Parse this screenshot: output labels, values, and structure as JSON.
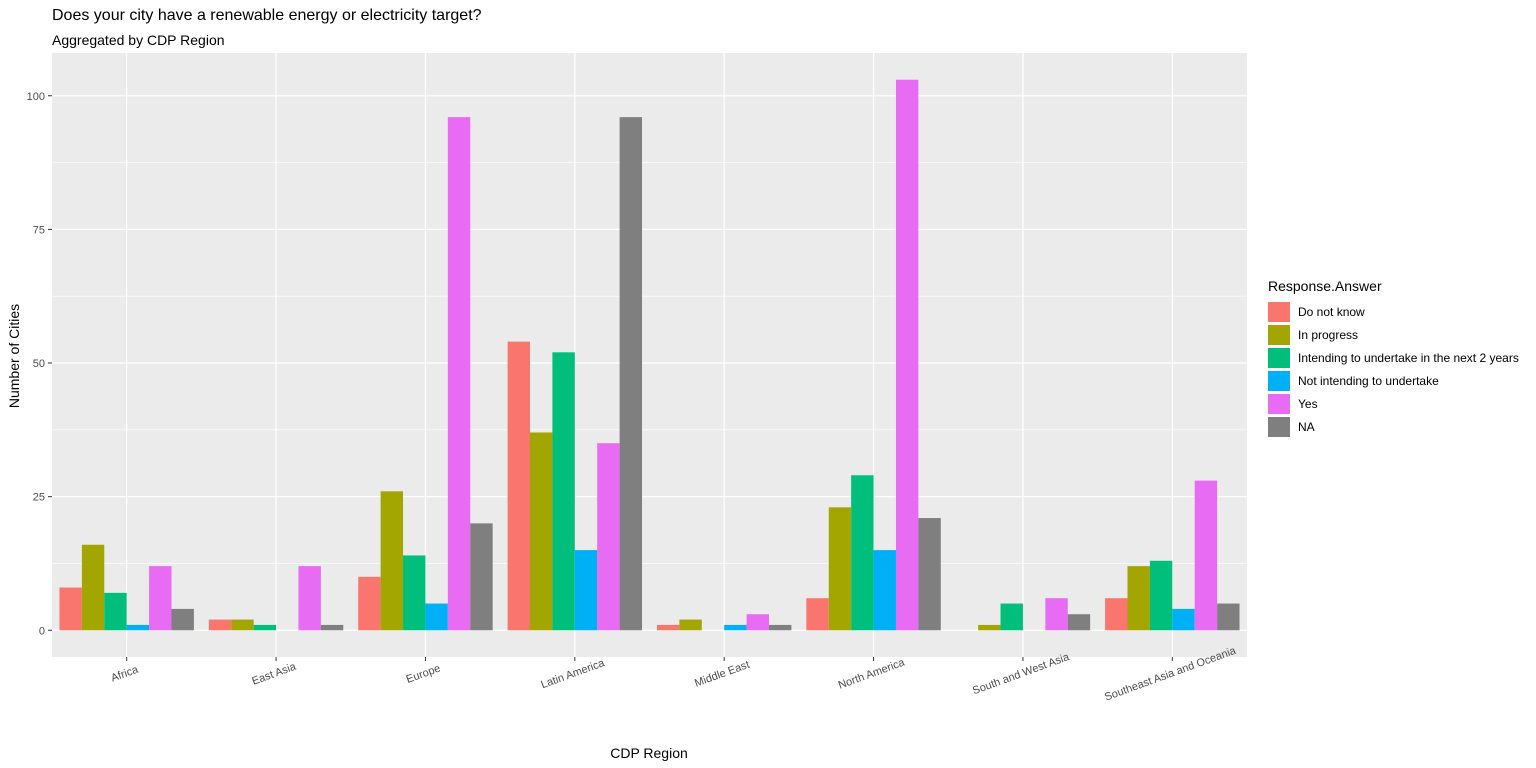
{
  "chart_data": {
    "type": "bar",
    "title": "Does your city have a renewable energy or electricity target?",
    "subtitle": "Aggregated by CDP Region",
    "xlabel": "CDP Region",
    "ylabel": "Number of Cities",
    "ylim": [
      -5,
      108
    ],
    "yticks": [
      0,
      25,
      50,
      75,
      100
    ],
    "ytick_labels": [
      "0",
      "25",
      "50",
      "75",
      "100"
    ],
    "grid": true,
    "legend_position": "right",
    "legend_title": "Response.Answer",
    "categories": [
      "Africa",
      "East Asia",
      "Europe",
      "Latin America",
      "Middle East",
      "North America",
      "South and West Asia",
      "Southeast Asia and Oceania"
    ],
    "series": [
      {
        "name": "Do not know",
        "color": "#F8766D",
        "values": [
          8,
          2,
          10,
          54,
          1,
          6,
          null,
          6
        ]
      },
      {
        "name": "In progress",
        "color": "#A3A500",
        "values": [
          16,
          2,
          26,
          37,
          2,
          23,
          1,
          12
        ]
      },
      {
        "name": "Intending to undertake in the next 2 years",
        "color": "#00BF7D",
        "values": [
          7,
          1,
          14,
          52,
          null,
          29,
          5,
          13
        ]
      },
      {
        "name": "Not intending to undertake",
        "color": "#00B0F6",
        "values": [
          1,
          null,
          5,
          15,
          1,
          15,
          null,
          4
        ]
      },
      {
        "name": "Yes",
        "color": "#E76BF3",
        "values": [
          12,
          12,
          96,
          35,
          3,
          103,
          6,
          28
        ]
      },
      {
        "name": "NA",
        "color": "#7F7F7F",
        "values": [
          4,
          1,
          20,
          96,
          1,
          21,
          3,
          5
        ]
      }
    ]
  }
}
